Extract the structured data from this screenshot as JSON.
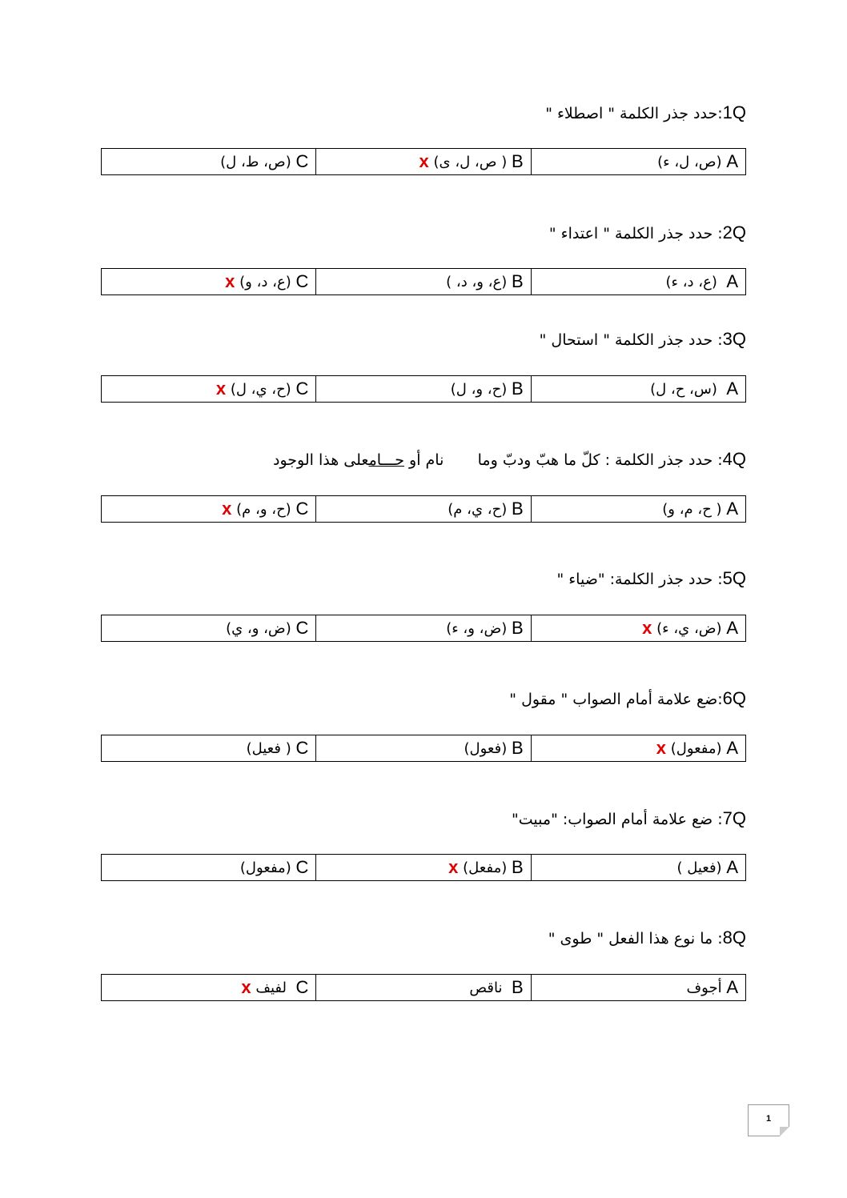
{
  "mark_color": "#e00000",
  "questions": [
    {
      "label": "1Q",
      "text": ":حدد جذر الكلمة \" اصطلاء \"",
      "options": [
        {
          "letter": "A",
          "text": "(ص، ل، ء)",
          "mark": ""
        },
        {
          "letter": "B",
          "text": "( ص، ل، ى)",
          "mark": "x"
        },
        {
          "letter": "C",
          "text": "(ص، ط، ل)",
          "mark": ""
        }
      ]
    },
    {
      "label": "2Q",
      "text": ": حدد جذر الكلمة \" اعتداء \"",
      "options": [
        {
          "letter": "A",
          "text": " (ع، د، ء)",
          "mark": ""
        },
        {
          "letter": "B",
          "text": "(ع، و، د، )",
          "mark": ""
        },
        {
          "letter": "C",
          "text": "(ع، د، و)",
          "mark": "x"
        }
      ]
    },
    {
      "label": "3Q",
      "text": ": حدد جذر الكلمة \" استحال \"",
      "options": [
        {
          "letter": "A",
          "text": " (س، ح، ل)",
          "mark": ""
        },
        {
          "letter": "B",
          "text": "(ح، و، ل)",
          "mark": ""
        },
        {
          "letter": "C",
          "text": "(ح، ي، ل)",
          "mark": "x"
        }
      ]
    },
    {
      "label": "4Q",
      "text_before": ": حدد جذر الكلمة : كلّ ما هبّ ودبّ وما       نام أو ",
      "text_underlined": "حـــام",
      "text_after": "على هذا الوجود",
      "options": [
        {
          "letter": "A",
          "text": "( ح، م، و)",
          "mark": ""
        },
        {
          "letter": "B",
          "text": "(ح، ي، م)",
          "mark": ""
        },
        {
          "letter": "C",
          "text": "(ح، و، م)",
          "mark": "x"
        }
      ]
    },
    {
      "label": "5Q",
      "text": ": حدد جذر الكلمة: \"ضياء \"",
      "options": [
        {
          "letter": "A",
          "text": "(ض، ي، ء)",
          "mark": "x"
        },
        {
          "letter": "B",
          "text": "(ض، و، ء)",
          "mark": ""
        },
        {
          "letter": "C",
          "text": "(ض، و، ي)",
          "mark": ""
        }
      ]
    },
    {
      "label": "6Q",
      "text": ":ضع علامة أمام الصواب \" مقول \"",
      "options": [
        {
          "letter": "A",
          "text": "(مفعول)",
          "mark": "x"
        },
        {
          "letter": "B",
          "text": "(فعول)",
          "mark": ""
        },
        {
          "letter": "C",
          "text": "( فعيل)",
          "mark": ""
        }
      ]
    },
    {
      "label": "7Q",
      "text": ": ضع علامة أمام الصواب: \"مبيت\"",
      "options": [
        {
          "letter": "A",
          "text": "(فعيل )",
          "mark": ""
        },
        {
          "letter": "B",
          "text": "(مفعل)",
          "mark": "x"
        },
        {
          "letter": "C",
          "text": "(مفعول)",
          "mark": ""
        }
      ]
    },
    {
      "label": "8Q",
      "text": ": ما نوع هذا الفعل \" طوى \"",
      "options": [
        {
          "letter": "A",
          "text": "أجوف",
          "mark": ""
        },
        {
          "letter": "B",
          "text": " ناقص",
          "mark": ""
        },
        {
          "letter": "C",
          "text": " لفيف",
          "mark": "x"
        }
      ]
    }
  ],
  "page_number": "1"
}
